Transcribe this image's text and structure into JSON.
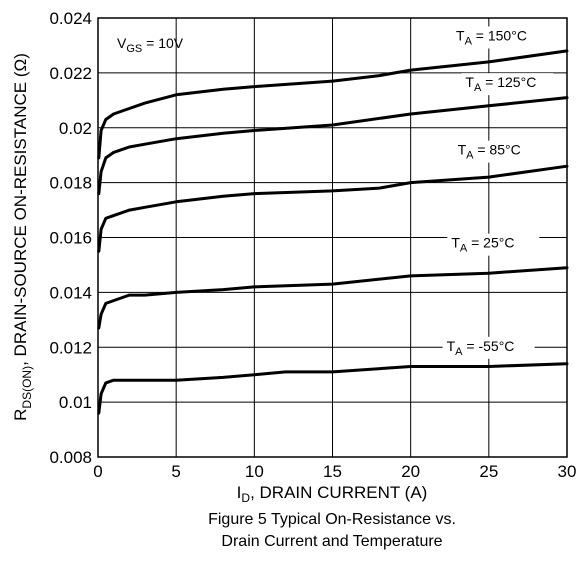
{
  "chart_data": {
    "type": "line",
    "xlabel": {
      "main": "I",
      "sub": "D",
      "rest": ", DRAIN CURRENT (A)"
    },
    "ylabel": {
      "main": "R",
      "sub": "DS(ON)",
      "rest": ", DRAIN-SOURCE ON-RESISTANCE (Ω)"
    },
    "caption": [
      "Figure 5 Typical On-Resistance vs.",
      "Drain Current and Temperature"
    ],
    "condition": {
      "main": "V",
      "sub": "GS",
      "rest": " = 10V"
    },
    "xlim": [
      0,
      30
    ],
    "ylim": [
      0.008,
      0.024
    ],
    "x_ticks": [
      0,
      5,
      10,
      15,
      20,
      25,
      30
    ],
    "y_ticks": [
      0.008,
      0.01,
      0.012,
      0.014,
      0.016,
      0.018,
      0.02,
      0.022,
      0.024
    ],
    "y_tick_labels": [
      "0.008",
      "0.01",
      "0.012",
      "0.014",
      "0.016",
      "0.018",
      "0.02",
      "0.022",
      "0.024"
    ],
    "grid": true,
    "series": [
      {
        "name": "T_A = 150°C",
        "label_main": "T",
        "label_sub": "A",
        "label_rest": " = 150°C",
        "x": [
          0.05,
          0.2,
          0.5,
          1,
          2,
          3,
          5,
          8,
          10,
          15,
          18,
          20,
          25,
          30
        ],
        "y": [
          0.0189,
          0.0199,
          0.0203,
          0.0205,
          0.0207,
          0.0209,
          0.0212,
          0.0214,
          0.0215,
          0.0217,
          0.0219,
          0.0221,
          0.0224,
          0.0228
        ]
      },
      {
        "name": "T_A = 125°C",
        "label_main": "T",
        "label_sub": "A",
        "label_rest": " = 125°C",
        "x": [
          0.05,
          0.2,
          0.5,
          1,
          2,
          3,
          5,
          8,
          10,
          15,
          20,
          25,
          30
        ],
        "y": [
          0.0176,
          0.0184,
          0.0189,
          0.0191,
          0.0193,
          0.0194,
          0.0196,
          0.0198,
          0.0199,
          0.0201,
          0.0205,
          0.0208,
          0.0211
        ]
      },
      {
        "name": "T_A = 85°C",
        "label_main": "T",
        "label_sub": "A",
        "label_rest": " = 85°C",
        "x": [
          0.05,
          0.2,
          0.5,
          1,
          2,
          3,
          5,
          8,
          10,
          15,
          18,
          20,
          25,
          30
        ],
        "y": [
          0.0155,
          0.0163,
          0.0167,
          0.0168,
          0.017,
          0.0171,
          0.0173,
          0.0175,
          0.0176,
          0.0177,
          0.0178,
          0.018,
          0.0182,
          0.0186
        ]
      },
      {
        "name": "T_A = 25°C",
        "label_main": "T",
        "label_sub": "A",
        "label_rest": " = 25°C",
        "x": [
          0.05,
          0.2,
          0.5,
          1,
          2,
          3,
          5,
          8,
          10,
          15,
          20,
          25,
          30
        ],
        "y": [
          0.0127,
          0.0132,
          0.0136,
          0.0137,
          0.0139,
          0.0139,
          0.014,
          0.0141,
          0.0142,
          0.0143,
          0.0146,
          0.0147,
          0.0149
        ]
      },
      {
        "name": "T_A = -55°C",
        "label_main": "T",
        "label_sub": "A",
        "label_rest": " = -55°C",
        "x": [
          0.05,
          0.2,
          0.5,
          1,
          2,
          3,
          5,
          8,
          10,
          12,
          15,
          20,
          25,
          30
        ],
        "y": [
          0.0096,
          0.0103,
          0.0107,
          0.0108,
          0.0108,
          0.0108,
          0.0108,
          0.0109,
          0.011,
          0.0111,
          0.0111,
          0.0113,
          0.0113,
          0.0114
        ]
      }
    ]
  }
}
